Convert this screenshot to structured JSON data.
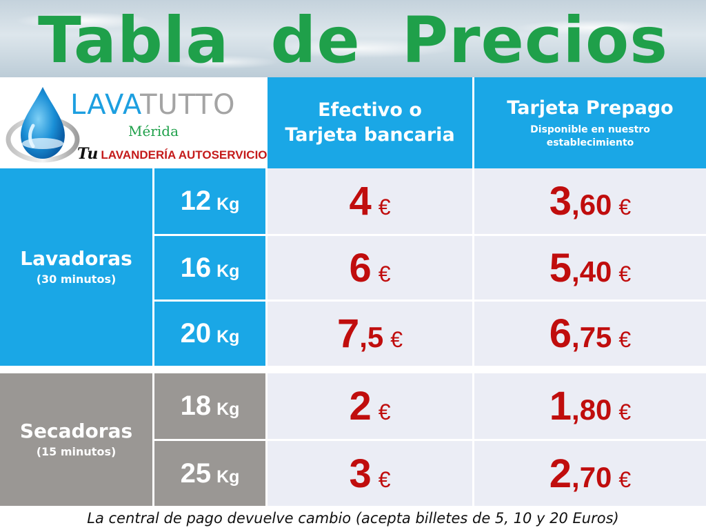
{
  "title_words": [
    "Tabla",
    "de",
    "Precios"
  ],
  "logo": {
    "brand_part1": "LAVA",
    "brand_part2": "TUTTO",
    "city": "Mérida",
    "tag_prefix": "Tu",
    "tag_rest": "LAVANDERÍA AUTOSERVICIO",
    "colors": {
      "lava": "#1d9fe0",
      "tutto": "#a4a4a4",
      "city": "#1fa04a",
      "tag": "#c41a1a"
    }
  },
  "headers": {
    "cash_line1": "Efectivo o",
    "cash_line2": "Tarjeta bancaria",
    "prepaid_title": "Tarjeta Prepago",
    "prepaid_sub1": "Disponible en nuestro",
    "prepaid_sub2": "establecimiento"
  },
  "categories": [
    {
      "title": "Lavadoras",
      "subtitle": "(30 minutos)",
      "color": "#1aa7e6"
    },
    {
      "title": "Secadoras",
      "subtitle": "(15 minutos)",
      "color": "#9a9794"
    }
  ],
  "rows": [
    {
      "cap_num": "12",
      "cap_unit": "Kg",
      "cash_main": "4",
      "cash_dec": "",
      "cash_cur": "€",
      "prepaid_main": "3",
      "prepaid_dec": ",60",
      "prepaid_cur": "€"
    },
    {
      "cap_num": "16",
      "cap_unit": "Kg",
      "cash_main": "6",
      "cash_dec": "",
      "cash_cur": "€",
      "prepaid_main": "5",
      "prepaid_dec": ",40",
      "prepaid_cur": "€"
    },
    {
      "cap_num": "20",
      "cap_unit": "Kg",
      "cash_main": "7",
      "cash_dec": ",5",
      "cash_cur": "€",
      "prepaid_main": "6",
      "prepaid_dec": ",75",
      "prepaid_cur": "€"
    },
    {
      "cap_num": "18",
      "cap_unit": "Kg",
      "cash_main": "2",
      "cash_dec": "",
      "cash_cur": "€",
      "prepaid_main": "1",
      "prepaid_dec": ",80",
      "prepaid_cur": "€"
    },
    {
      "cap_num": "25",
      "cap_unit": "Kg",
      "cash_main": "3",
      "cash_dec": "",
      "cash_cur": "€",
      "prepaid_main": "2",
      "prepaid_dec": ",70",
      "prepaid_cur": "€"
    }
  ],
  "footer": "La central de pago devuelve cambio (acepta billetes de 5, 10 y 20 Euros)",
  "colors": {
    "title_green": "#1fa04a",
    "price_red": "#c00d0d",
    "header_blue": "#1aa7e6",
    "secadoras_gray": "#9a9794",
    "cell_bg": "#ebedf5"
  }
}
